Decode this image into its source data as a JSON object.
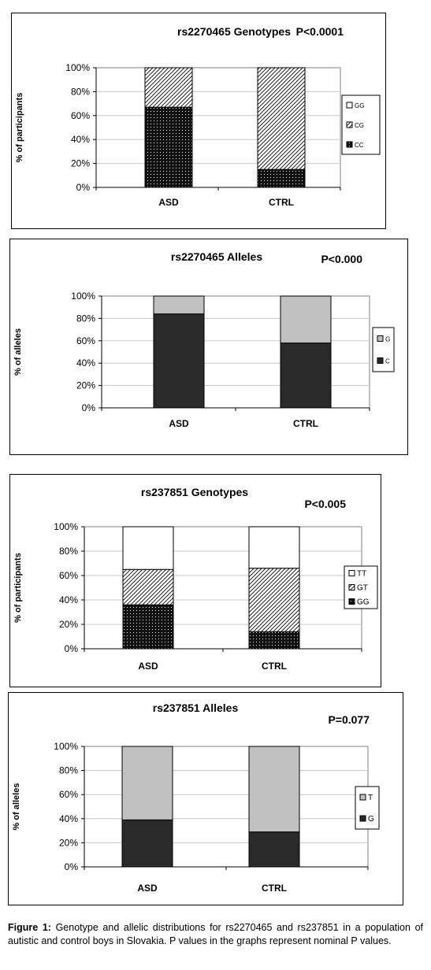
{
  "colors": {
    "dark": "#2a2a2a",
    "light_gray": "#c0c0c0",
    "white": "#ffffff",
    "grid": "#c8c8c8"
  },
  "chart_data": [
    {
      "type": "bar",
      "stacked": true,
      "title": "rs2270465 Genotypes",
      "pvalue": "P<0.0001",
      "ylabel": "% of participants",
      "xlabel": "",
      "ylim": [
        0,
        100
      ],
      "yticks": [
        "0%",
        "20%",
        "40%",
        "60%",
        "80%",
        "100%"
      ],
      "categories": [
        "ASD",
        "CTRL"
      ],
      "series": [
        {
          "name": "CC",
          "values": [
            67,
            15
          ],
          "pattern": "dots"
        },
        {
          "name": "CG",
          "values": [
            33,
            85
          ],
          "pattern": "hatch"
        },
        {
          "name": "GG",
          "values": [
            0,
            0
          ],
          "pattern": "white"
        }
      ],
      "legend_order": [
        "GG",
        "CG",
        "CC"
      ],
      "grid": true,
      "legend_position": "right"
    },
    {
      "type": "bar",
      "stacked": true,
      "title": "rs2270465 Alleles",
      "pvalue": "P<0.000",
      "ylabel": "% of alleles",
      "xlabel": "",
      "ylim": [
        0,
        100
      ],
      "yticks": [
        "0%",
        "20%",
        "40%",
        "60%",
        "80%",
        "100%"
      ],
      "categories": [
        "ASD",
        "CTRL"
      ],
      "series": [
        {
          "name": "C",
          "values": [
            84,
            58
          ],
          "pattern": "dark"
        },
        {
          "name": "G",
          "values": [
            16,
            42
          ],
          "pattern": "gray"
        }
      ],
      "legend_order": [
        "G",
        "C"
      ],
      "grid": true,
      "legend_position": "right"
    },
    {
      "type": "bar",
      "stacked": true,
      "title": "rs237851 Genotypes",
      "pvalue": "P<0.005",
      "ylabel": "% of participants",
      "xlabel": "",
      "ylim": [
        0,
        100
      ],
      "yticks": [
        "0%",
        "20%",
        "40%",
        "60%",
        "80%",
        "100%"
      ],
      "categories": [
        "ASD",
        "CTRL"
      ],
      "series": [
        {
          "name": "GG",
          "values": [
            36,
            14
          ],
          "pattern": "dots"
        },
        {
          "name": "GT",
          "values": [
            29,
            52
          ],
          "pattern": "hatch"
        },
        {
          "name": "TT",
          "values": [
            35,
            34
          ],
          "pattern": "white"
        }
      ],
      "legend_order": [
        "TT",
        "GT",
        "GG"
      ],
      "grid": true,
      "legend_position": "right"
    },
    {
      "type": "bar",
      "stacked": true,
      "title": "rs237851 Alleles",
      "pvalue": "P=0.077",
      "ylabel": "% of alleles",
      "xlabel": "",
      "ylim": [
        0,
        100
      ],
      "yticks": [
        "0%",
        "20%",
        "40%",
        "60%",
        "80%",
        "100%"
      ],
      "categories": [
        "ASD",
        "CTRL"
      ],
      "series": [
        {
          "name": "G",
          "values": [
            39,
            29
          ],
          "pattern": "dark"
        },
        {
          "name": "T",
          "values": [
            61,
            71
          ],
          "pattern": "gray"
        }
      ],
      "legend_order": [
        "T",
        "G"
      ],
      "grid": true,
      "legend_position": "right"
    }
  ],
  "caption": {
    "label": "Figure 1:",
    "text": " Genotype and allelic distributions for rs2270465 and rs237851 in a population of autistic and control boys in Slovakia. P values in the graphs represent nominal P values."
  }
}
